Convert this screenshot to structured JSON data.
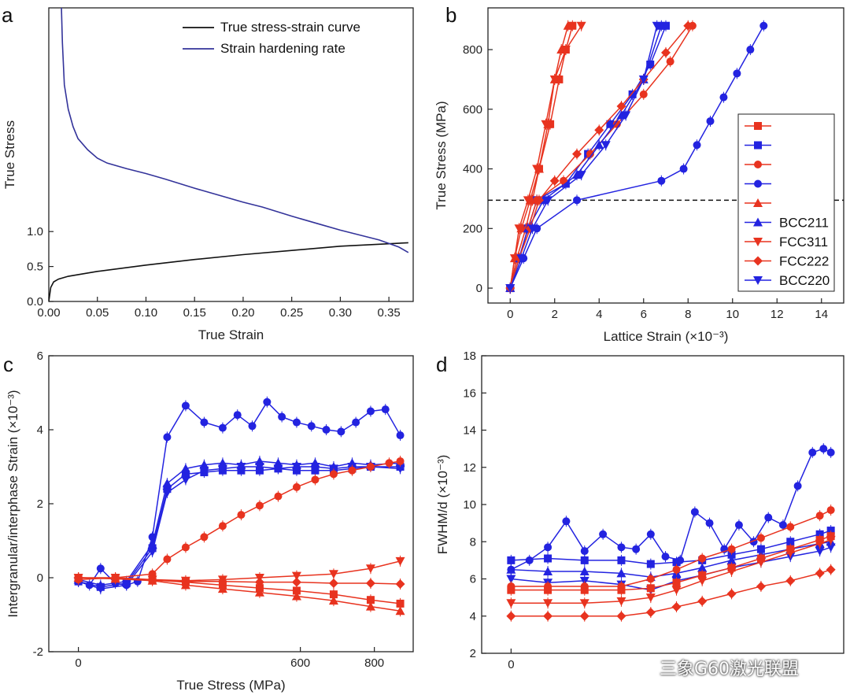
{
  "colors": {
    "red": "#e8331f",
    "blue": "#2323e0",
    "black": "#111111",
    "curve_blue": "#33339a"
  },
  "watermark": "三象G60激光联盟",
  "chart_data": [
    {
      "panel": "a",
      "type": "line",
      "xlabel": "True Strain",
      "ylabel": "True Stress",
      "xlim": [
        0,
        0.375
      ],
      "ylim": [
        0,
        4.2
      ],
      "xticks": [
        "0.00",
        "0.05",
        "0.10",
        "0.15",
        "0.20",
        "0.25",
        "0.30",
        "0.35"
      ],
      "yticks": [
        "0.0",
        "0.5",
        "1.0"
      ],
      "legend": [
        "True stress-strain curve",
        "Strain hardening rate"
      ],
      "legend_position": "top-right",
      "series": [
        {
          "name": "True stress-strain curve",
          "x": [
            0.0,
            0.002,
            0.005,
            0.01,
            0.02,
            0.05,
            0.1,
            0.15,
            0.2,
            0.25,
            0.3,
            0.37
          ],
          "y": [
            0.0,
            0.2,
            0.28,
            0.32,
            0.36,
            0.43,
            0.52,
            0.6,
            0.67,
            0.73,
            0.79,
            0.84
          ]
        },
        {
          "name": "Strain hardening rate",
          "x": [
            0.013,
            0.014,
            0.016,
            0.02,
            0.025,
            0.03,
            0.04,
            0.05,
            0.06,
            0.08,
            0.1,
            0.12,
            0.15,
            0.18,
            0.2,
            0.22,
            0.25,
            0.28,
            0.3,
            0.32,
            0.34,
            0.36,
            0.37
          ],
          "y": [
            4.2,
            3.7,
            3.1,
            2.75,
            2.5,
            2.33,
            2.17,
            2.05,
            1.98,
            1.9,
            1.83,
            1.75,
            1.62,
            1.5,
            1.42,
            1.35,
            1.22,
            1.1,
            1.02,
            0.95,
            0.88,
            0.78,
            0.7
          ]
        }
      ]
    },
    {
      "panel": "b",
      "type": "line",
      "xlabel": "Lattice Strain (×10⁻³)",
      "ylabel": "True Stress (MPa)",
      "xlim": [
        -1,
        15
      ],
      "ylim": [
        -50,
        940
      ],
      "xticks": [
        0,
        2,
        4,
        6,
        8,
        10,
        12,
        14
      ],
      "yticks": [
        0,
        200,
        400,
        600,
        800
      ],
      "yield_line": 295,
      "legend_position": "right",
      "series": [
        {
          "name": "",
          "color": "red",
          "marker": "square",
          "x": [
            0,
            0.3,
            0.7,
            1.0,
            1.3,
            1.8,
            2.2,
            2.5,
            2.8
          ],
          "y": [
            0,
            100,
            200,
            295,
            400,
            550,
            700,
            800,
            880
          ]
        },
        {
          "name": "",
          "color": "blue",
          "marker": "square",
          "x": [
            0,
            0.4,
            0.8,
            1.2,
            2.5,
            3.5,
            4.5,
            5.5,
            6.3,
            7.0
          ],
          "y": [
            0,
            100,
            200,
            295,
            350,
            450,
            550,
            650,
            750,
            880
          ]
        },
        {
          "name": "",
          "color": "red",
          "marker": "circle",
          "x": [
            0,
            0.4,
            0.8,
            1.2,
            2.4,
            3.6,
            4.8,
            6.0,
            7.2,
            8.2
          ],
          "y": [
            0,
            100,
            200,
            295,
            360,
            450,
            550,
            650,
            760,
            880
          ]
        },
        {
          "name": "",
          "color": "blue",
          "marker": "circle",
          "x": [
            0,
            0.6,
            1.2,
            3.0,
            6.8,
            7.8,
            8.4,
            9.0,
            9.6,
            10.2,
            10.8,
            11.4
          ],
          "y": [
            0,
            100,
            200,
            295,
            360,
            400,
            480,
            560,
            640,
            720,
            800,
            880
          ]
        },
        {
          "name": "",
          "color": "red",
          "marker": "triangle",
          "x": [
            0,
            0.2,
            0.5,
            0.9,
            1.3,
            1.7,
            2.0,
            2.3,
            2.6
          ],
          "y": [
            0,
            100,
            200,
            295,
            400,
            550,
            700,
            800,
            880
          ]
        },
        {
          "name": "BCC211",
          "color": "blue",
          "marker": "triangle",
          "x": [
            0,
            0.4,
            0.8,
            1.5,
            3.0,
            4.0,
            5.0,
            6.0,
            6.8
          ],
          "y": [
            0,
            100,
            200,
            295,
            380,
            480,
            580,
            700,
            880
          ]
        },
        {
          "name": "FCC311",
          "color": "red",
          "marker": "triangle-down",
          "x": [
            0,
            0.2,
            0.4,
            0.8,
            1.2,
            1.6,
            2.0,
            2.5,
            3.2
          ],
          "y": [
            0,
            100,
            200,
            295,
            400,
            550,
            700,
            800,
            880
          ]
        },
        {
          "name": "FCC222",
          "color": "red",
          "marker": "diamond",
          "x": [
            0,
            0.4,
            0.9,
            1.3,
            2.0,
            3.0,
            4.0,
            5.0,
            6.0,
            7.0,
            8.0
          ],
          "y": [
            0,
            100,
            200,
            295,
            360,
            450,
            530,
            610,
            700,
            790,
            880
          ]
        },
        {
          "name": "BCC220",
          "color": "blue",
          "marker": "triangle-down",
          "x": [
            0,
            0.5,
            1.0,
            1.7,
            3.2,
            4.3,
            5.2,
            6.0,
            6.6
          ],
          "y": [
            0,
            100,
            200,
            295,
            380,
            480,
            580,
            700,
            880
          ]
        }
      ]
    },
    {
      "panel": "c",
      "type": "line",
      "xlabel": "True Stress (MPa)",
      "ylabel": "Intergranular/interphase Strain (×10⁻³)",
      "xlim": [
        -80,
        905
      ],
      "ylim": [
        -2,
        6
      ],
      "xticks": [
        0,
        600,
        800
      ],
      "yticks": [
        -2,
        0,
        2,
        4,
        6
      ],
      "series": [
        {
          "name": "",
          "color": "blue",
          "marker": "circle",
          "x": [
            0,
            30,
            60,
            100,
            130,
            160,
            200,
            240,
            290,
            340,
            390,
            430,
            470,
            510,
            550,
            590,
            630,
            670,
            710,
            750,
            790,
            830,
            870
          ],
          "y": [
            -0.1,
            -0.2,
            0.25,
            -0.15,
            -0.2,
            -0.1,
            1.1,
            3.8,
            4.65,
            4.2,
            4.05,
            4.4,
            4.1,
            4.75,
            4.35,
            4.2,
            4.1,
            4.0,
            3.95,
            4.2,
            4.5,
            4.55,
            3.85
          ]
        },
        {
          "name": "",
          "color": "blue",
          "marker": "square",
          "x": [
            0,
            60,
            130,
            200,
            240,
            290,
            340,
            390,
            440,
            490,
            540,
            590,
            640,
            690,
            740,
            790,
            870
          ],
          "y": [
            -0.1,
            -0.25,
            -0.15,
            0.8,
            2.4,
            2.8,
            2.85,
            2.9,
            2.9,
            2.9,
            2.95,
            2.9,
            2.9,
            2.9,
            2.95,
            3.0,
            3.0
          ]
        },
        {
          "name": "",
          "color": "blue",
          "marker": "triangle",
          "x": [
            0,
            60,
            130,
            200,
            240,
            290,
            340,
            390,
            440,
            490,
            540,
            590,
            640,
            690,
            740,
            790,
            870
          ],
          "y": [
            -0.05,
            -0.2,
            -0.1,
            0.9,
            2.55,
            2.95,
            3.05,
            3.1,
            3.05,
            3.15,
            3.1,
            3.05,
            3.1,
            3.0,
            3.1,
            3.05,
            3.1
          ]
        },
        {
          "name": "",
          "color": "blue",
          "marker": "triangle-down",
          "x": [
            0,
            60,
            130,
            200,
            240,
            290,
            340,
            390,
            440,
            490,
            540,
            590,
            640,
            690,
            740,
            790,
            870
          ],
          "y": [
            -0.1,
            -0.3,
            -0.2,
            0.7,
            2.3,
            2.65,
            2.9,
            2.95,
            3.0,
            3.0,
            2.95,
            3.0,
            3.0,
            2.95,
            3.0,
            3.0,
            2.95
          ]
        },
        {
          "name": "",
          "color": "red",
          "marker": "circle",
          "x": [
            0,
            100,
            200,
            240,
            290,
            340,
            390,
            440,
            490,
            540,
            590,
            640,
            690,
            740,
            790,
            840,
            870
          ],
          "y": [
            -0.05,
            0.0,
            0.1,
            0.5,
            0.82,
            1.1,
            1.4,
            1.7,
            1.95,
            2.2,
            2.45,
            2.65,
            2.8,
            2.9,
            3.0,
            3.1,
            3.15
          ]
        },
        {
          "name": "",
          "color": "red",
          "marker": "triangle-down",
          "x": [
            0,
            100,
            200,
            290,
            390,
            490,
            590,
            690,
            790,
            870
          ],
          "y": [
            0,
            0.0,
            -0.05,
            -0.08,
            -0.05,
            0.0,
            0.05,
            0.1,
            0.25,
            0.45
          ]
        },
        {
          "name": "",
          "color": "red",
          "marker": "diamond",
          "x": [
            0,
            100,
            200,
            290,
            390,
            490,
            590,
            690,
            790,
            870
          ],
          "y": [
            0,
            -0.02,
            -0.06,
            -0.1,
            -0.1,
            -0.12,
            -0.12,
            -0.15,
            -0.15,
            -0.17
          ]
        },
        {
          "name": "",
          "color": "red",
          "marker": "square",
          "x": [
            0,
            100,
            200,
            290,
            390,
            490,
            590,
            690,
            790,
            870
          ],
          "y": [
            0,
            -0.02,
            -0.06,
            -0.12,
            -0.2,
            -0.28,
            -0.35,
            -0.45,
            -0.6,
            -0.7
          ]
        },
        {
          "name": "",
          "color": "red",
          "marker": "triangle",
          "x": [
            0,
            100,
            200,
            290,
            390,
            490,
            590,
            690,
            790,
            870
          ],
          "y": [
            0,
            -0.03,
            -0.08,
            -0.2,
            -0.3,
            -0.4,
            -0.5,
            -0.62,
            -0.78,
            -0.9
          ]
        }
      ]
    },
    {
      "panel": "d",
      "type": "line",
      "xlabel": "",
      "ylabel": "FWHM/d (×10⁻³)",
      "xlim": [
        -80,
        905
      ],
      "ylim": [
        2,
        18
      ],
      "xticks": [
        0
      ],
      "yticks": [
        2,
        4,
        6,
        8,
        10,
        12,
        14,
        16,
        18
      ],
      "series": [
        {
          "name": "",
          "color": "blue",
          "marker": "circle",
          "x": [
            0,
            50,
            100,
            150,
            200,
            250,
            300,
            340,
            380,
            420,
            460,
            500,
            540,
            580,
            620,
            660,
            700,
            740,
            780,
            820,
            850,
            870
          ],
          "y": [
            6.5,
            7.0,
            7.7,
            9.1,
            7.5,
            8.4,
            7.7,
            7.6,
            8.4,
            7.2,
            7.0,
            9.6,
            9.0,
            7.6,
            8.9,
            8.0,
            9.3,
            8.9,
            11.0,
            12.8,
            13.0,
            12.8
          ]
        },
        {
          "name": "",
          "color": "blue",
          "marker": "square",
          "x": [
            0,
            100,
            200,
            300,
            380,
            450,
            520,
            600,
            680,
            760,
            840,
            870
          ],
          "y": [
            7.0,
            7.1,
            7.0,
            7.0,
            6.8,
            6.9,
            7.0,
            7.3,
            7.6,
            8.0,
            8.4,
            8.6
          ]
        },
        {
          "name": "",
          "color": "blue",
          "marker": "triangle",
          "x": [
            0,
            100,
            200,
            300,
            380,
            450,
            520,
            600,
            680,
            760,
            840,
            870
          ],
          "y": [
            6.5,
            6.4,
            6.4,
            6.3,
            6.1,
            6.3,
            6.6,
            7.0,
            7.3,
            7.6,
            7.9,
            8.0
          ]
        },
        {
          "name": "",
          "color": "blue",
          "marker": "triangle-down",
          "x": [
            0,
            100,
            200,
            300,
            380,
            450,
            520,
            600,
            680,
            760,
            840,
            870
          ],
          "y": [
            6.0,
            5.8,
            5.9,
            5.7,
            5.4,
            5.9,
            6.2,
            6.6,
            6.9,
            7.2,
            7.5,
            7.7
          ]
        },
        {
          "name": "",
          "color": "red",
          "marker": "circle",
          "x": [
            0,
            100,
            200,
            300,
            380,
            450,
            520,
            600,
            680,
            760,
            840,
            870
          ],
          "y": [
            5.6,
            5.6,
            5.6,
            5.6,
            6.0,
            6.5,
            7.1,
            7.6,
            8.2,
            8.8,
            9.4,
            9.7
          ]
        },
        {
          "name": "",
          "color": "red",
          "marker": "square",
          "x": [
            0,
            100,
            200,
            300,
            380,
            450,
            520,
            600,
            680,
            760,
            840,
            870
          ],
          "y": [
            5.4,
            5.4,
            5.4,
            5.4,
            5.5,
            5.8,
            6.2,
            6.6,
            7.1,
            7.6,
            8.1,
            8.3
          ]
        },
        {
          "name": "",
          "color": "red",
          "marker": "triangle-down",
          "x": [
            0,
            100,
            200,
            300,
            380,
            450,
            520,
            600,
            680,
            760,
            840,
            870
          ],
          "y": [
            4.7,
            4.7,
            4.7,
            4.8,
            5.0,
            5.4,
            5.9,
            6.4,
            6.9,
            7.4,
            7.9,
            8.1
          ]
        },
        {
          "name": "",
          "color": "red",
          "marker": "diamond",
          "x": [
            0,
            100,
            200,
            300,
            380,
            450,
            520,
            600,
            680,
            760,
            840,
            870
          ],
          "y": [
            4.0,
            4.0,
            4.0,
            4.0,
            4.2,
            4.5,
            4.8,
            5.2,
            5.6,
            5.9,
            6.3,
            6.5
          ]
        }
      ]
    }
  ]
}
